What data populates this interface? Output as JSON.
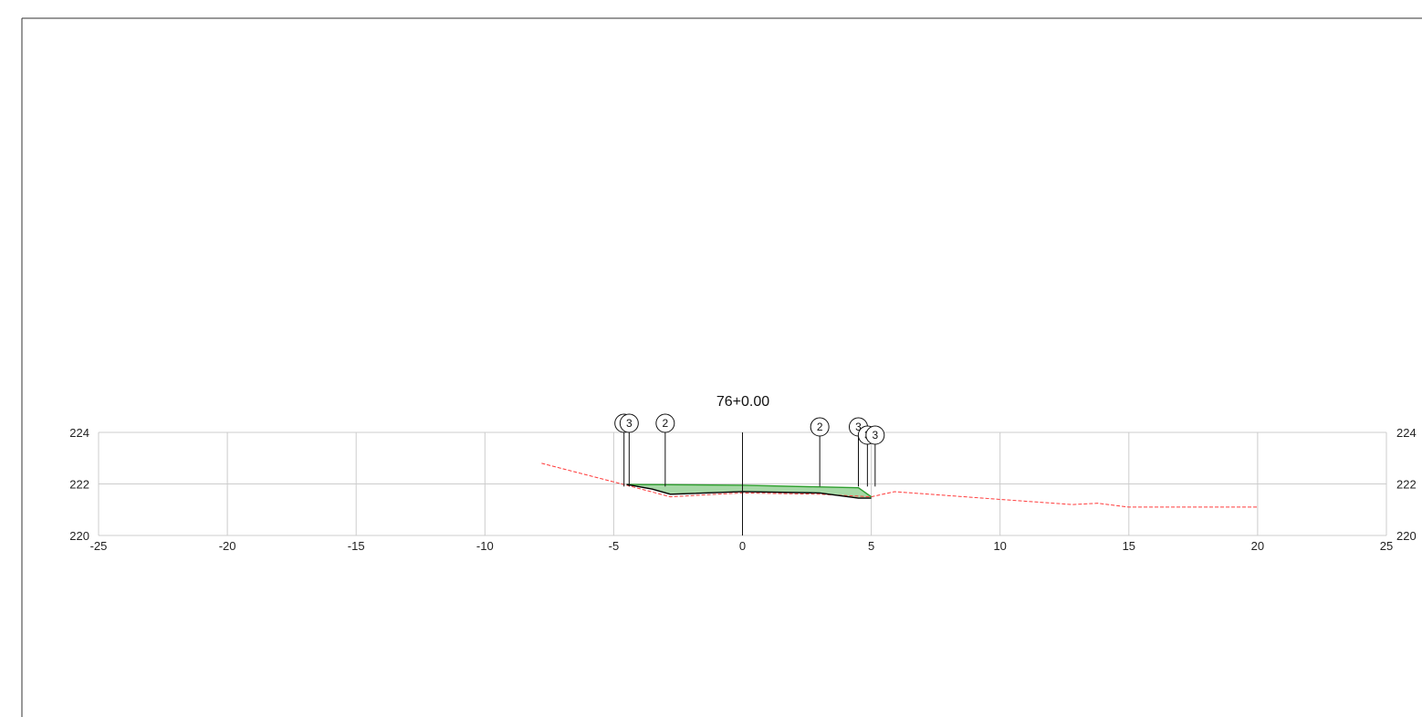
{
  "station_title": "76+0.00",
  "chart_data": {
    "type": "line",
    "title": "76+0.00",
    "xlim": [
      -25,
      25
    ],
    "ylim": [
      220,
      224
    ],
    "x_ticks": [
      -25,
      -20,
      -15,
      -10,
      -5,
      0,
      5,
      10,
      15,
      20,
      25
    ],
    "x_tick_labels": [
      "-25",
      "-20",
      "-15",
      "-10",
      "-5",
      "0",
      "5",
      "10",
      "15",
      "20",
      "25"
    ],
    "y_ticks": [
      220,
      222,
      224
    ],
    "y_tick_labels": [
      "220",
      "222",
      "224"
    ],
    "grid": true,
    "colors": {
      "existing_ground": "#ff3b3b",
      "design": "#2e9e2e",
      "design_fill": "#5cb85c",
      "subgrade": "#000000",
      "grid": "#cccccc",
      "frame": "#000000"
    },
    "series": [
      {
        "style": "dashed",
        "color": "#ff3b3b",
        "x": [
          -7.8,
          -4.5,
          -2.8,
          -1.0,
          0.0,
          3.0,
          5.0,
          5.9,
          10.0,
          12.8,
          13.8,
          15.0,
          20.0
        ],
        "y": [
          222.8,
          221.95,
          221.5,
          221.6,
          221.65,
          221.6,
          221.5,
          221.7,
          221.4,
          221.2,
          221.25,
          221.1,
          221.1
        ]
      },
      {
        "color": "#2e9e2e",
        "x": [
          -4.5,
          0.0,
          4.5,
          5.0
        ],
        "y": [
          221.98,
          221.95,
          221.85,
          221.5
        ]
      },
      {
        "color": "#000000",
        "x": [
          -4.5,
          -3.5,
          -2.8,
          0.0,
          3.0,
          4.5,
          5.0
        ],
        "y": [
          221.98,
          221.8,
          221.6,
          221.7,
          221.65,
          221.45,
          221.45
        ]
      }
    ],
    "callouts": [
      {
        "label": "3",
        "x": -4.6
      },
      {
        "label": "3",
        "x": -4.4
      },
      {
        "label": "2",
        "x": -3.0
      },
      {
        "label": "2",
        "x": 3.0
      },
      {
        "label": "3",
        "x": 4.5
      },
      {
        "label": "3",
        "x": 4.85
      },
      {
        "label": "3",
        "x": 5.15
      }
    ]
  }
}
